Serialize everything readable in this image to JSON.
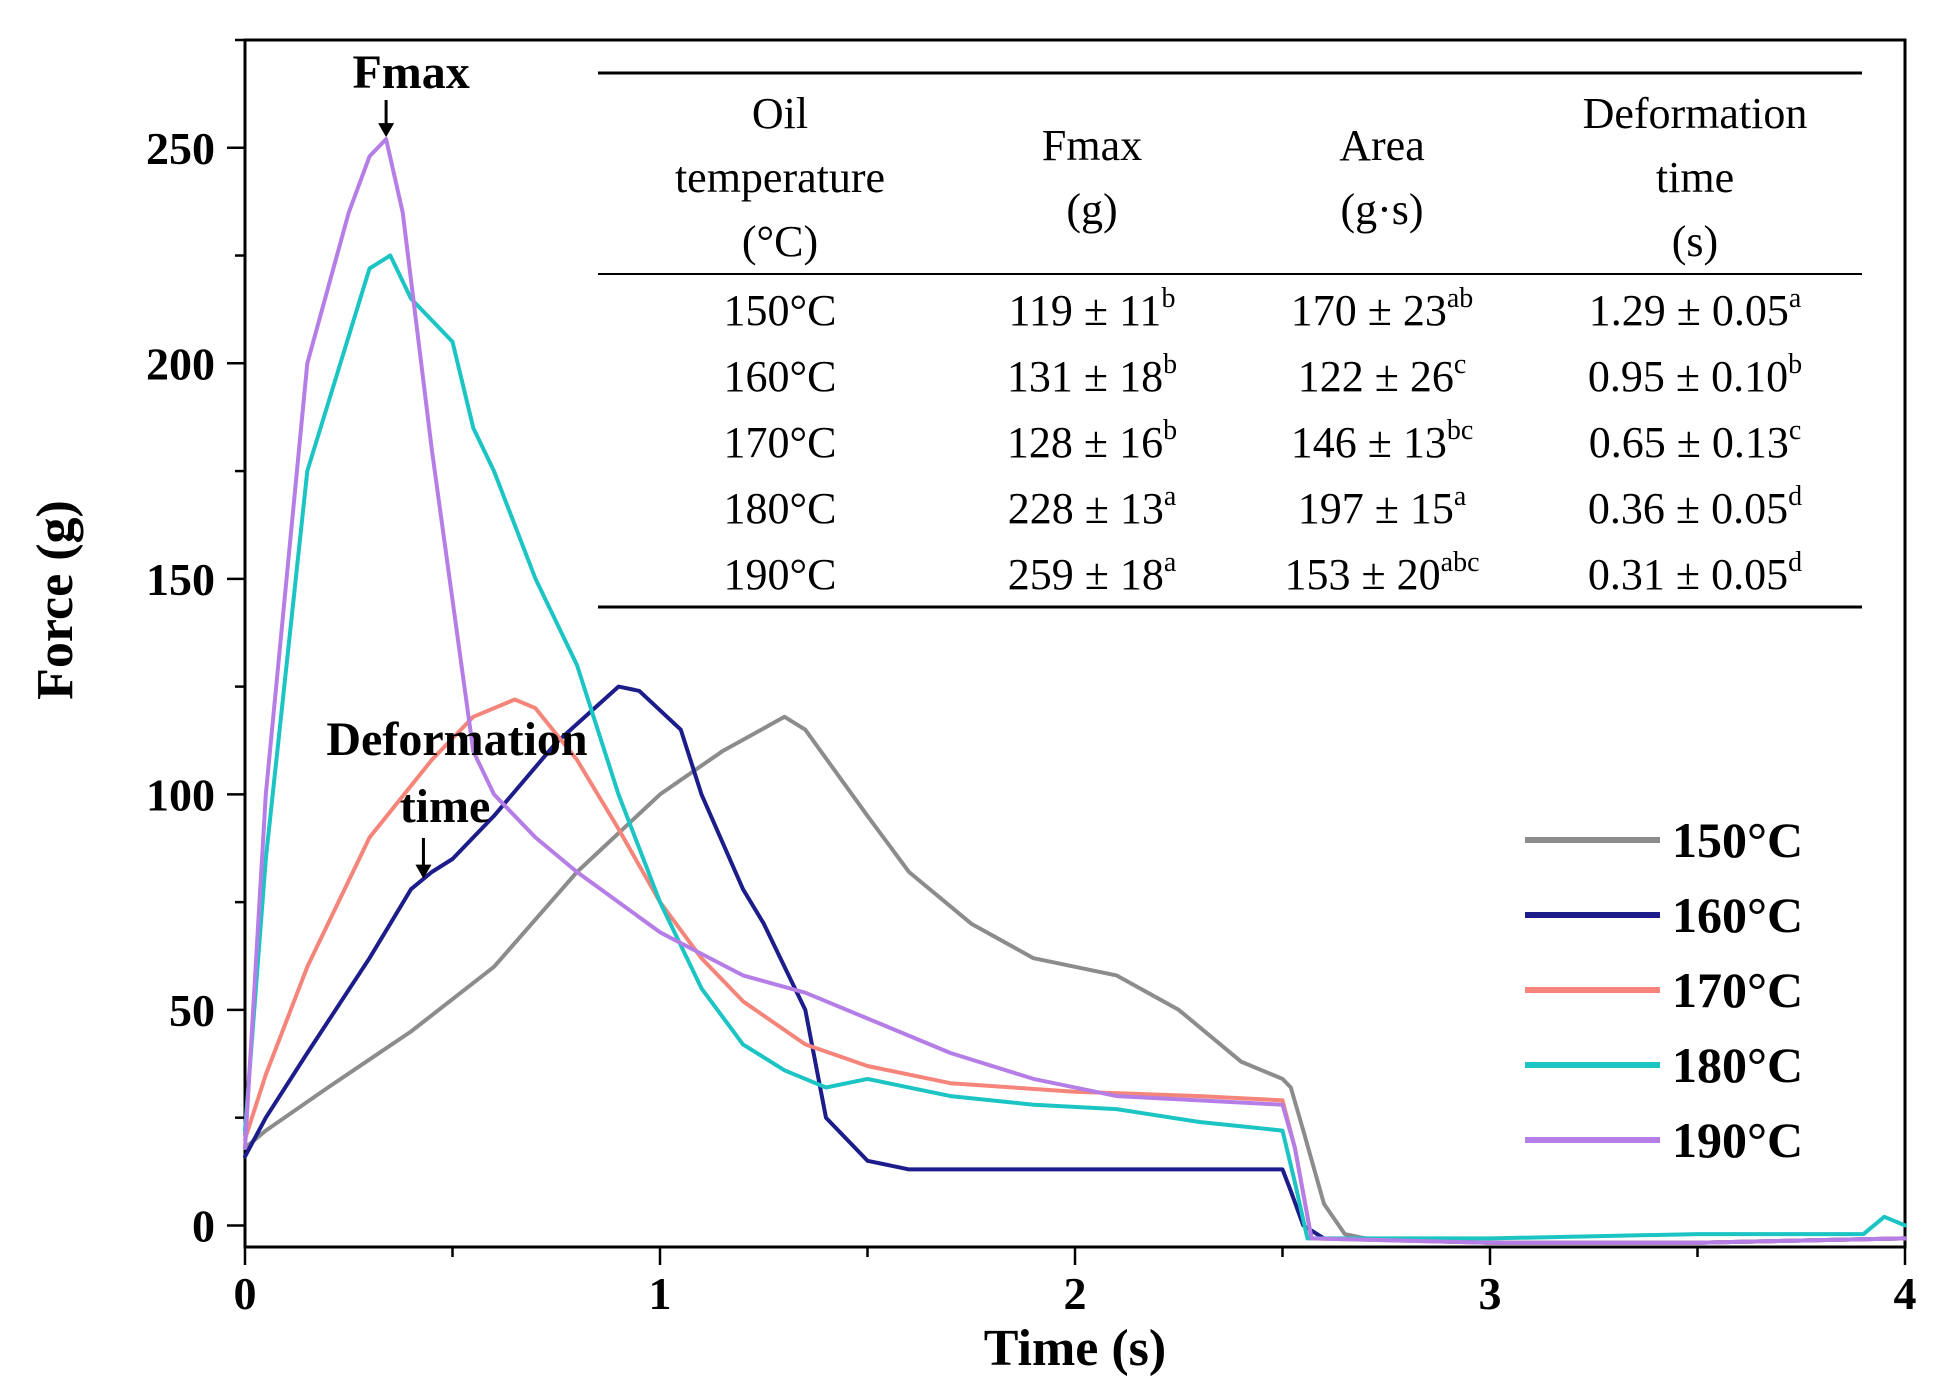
{
  "chart_data": {
    "type": "line",
    "xlabel": "Time (s)",
    "ylabel": "Force (g)",
    "xlim": [
      0,
      4
    ],
    "ylim": [
      -5,
      275
    ],
    "xticks": [
      0,
      1,
      2,
      3,
      4
    ],
    "yticks": [
      0,
      50,
      100,
      150,
      200,
      250
    ],
    "legend_position": "bottom-right",
    "annotations": [
      {
        "id": "fmax",
        "text": "Fmax",
        "x": 0.34,
        "y": 252
      },
      {
        "id": "deformation",
        "text_lines": [
          "Deformation",
          "time"
        ],
        "x": 0.43,
        "y": 80
      }
    ],
    "series": [
      {
        "name": "150°C",
        "color": "#8c8c8c",
        "x": [
          0,
          0.05,
          0.2,
          0.4,
          0.6,
          0.8,
          1.0,
          1.15,
          1.3,
          1.35,
          1.5,
          1.6,
          1.75,
          1.9,
          2.1,
          2.25,
          2.4,
          2.5,
          2.52,
          2.55,
          2.6,
          2.65,
          2.7,
          3.0,
          3.5,
          4.0
        ],
        "y": [
          18,
          22,
          32,
          45,
          60,
          82,
          100,
          110,
          118,
          115,
          95,
          82,
          70,
          62,
          58,
          50,
          38,
          34,
          32,
          22,
          5,
          -2,
          -3,
          -4,
          -4,
          -3
        ]
      },
      {
        "name": "160°C",
        "color": "#1c1c8a",
        "x": [
          0,
          0.05,
          0.15,
          0.3,
          0.4,
          0.45,
          0.5,
          0.6,
          0.75,
          0.9,
          0.95,
          1.05,
          1.1,
          1.2,
          1.25,
          1.3,
          1.35,
          1.4,
          1.5,
          1.6,
          2.0,
          2.5,
          2.52,
          2.55,
          2.6,
          3.0,
          3.5,
          4.0
        ],
        "y": [
          16,
          25,
          40,
          62,
          78,
          82,
          85,
          95,
          112,
          125,
          124,
          115,
          100,
          78,
          70,
          60,
          50,
          25,
          15,
          13,
          13,
          13,
          8,
          0,
          -3,
          -4,
          -4,
          -3
        ]
      },
      {
        "name": "170°C",
        "color": "#f5857a",
        "x": [
          0,
          0.05,
          0.15,
          0.3,
          0.45,
          0.55,
          0.65,
          0.7,
          0.8,
          0.9,
          1.0,
          1.1,
          1.2,
          1.35,
          1.5,
          1.7,
          2.0,
          2.3,
          2.5,
          2.53,
          2.57,
          3.0,
          3.5,
          4.0
        ],
        "y": [
          20,
          35,
          60,
          90,
          108,
          118,
          122,
          120,
          108,
          92,
          75,
          62,
          52,
          42,
          37,
          33,
          31,
          30,
          29,
          18,
          -3,
          -4,
          -4,
          -3
        ]
      },
      {
        "name": "180°C",
        "color": "#1cc4c4",
        "x": [
          0,
          0.05,
          0.15,
          0.3,
          0.35,
          0.4,
          0.45,
          0.5,
          0.55,
          0.6,
          0.7,
          0.8,
          0.9,
          1.0,
          1.1,
          1.2,
          1.3,
          1.4,
          1.5,
          1.7,
          1.9,
          2.1,
          2.3,
          2.5,
          2.53,
          2.56,
          3.0,
          3.5,
          3.9,
          3.95,
          4.0
        ],
        "y": [
          22,
          85,
          175,
          222,
          225,
          215,
          210,
          205,
          185,
          175,
          150,
          130,
          100,
          75,
          55,
          42,
          36,
          32,
          34,
          30,
          28,
          27,
          24,
          22,
          10,
          -3,
          -3,
          -2,
          -2,
          2,
          0
        ]
      },
      {
        "name": "190°C",
        "color": "#b57ee6",
        "x": [
          0,
          0.05,
          0.15,
          0.25,
          0.3,
          0.34,
          0.38,
          0.45,
          0.55,
          0.6,
          0.7,
          0.8,
          0.9,
          1.0,
          1.1,
          1.2,
          1.35,
          1.5,
          1.7,
          1.9,
          2.1,
          2.3,
          2.5,
          2.53,
          2.57,
          3.0,
          3.5,
          4.0
        ],
        "y": [
          18,
          100,
          200,
          235,
          248,
          252,
          235,
          180,
          110,
          100,
          90,
          82,
          75,
          68,
          63,
          58,
          54,
          48,
          40,
          34,
          30,
          29,
          28,
          18,
          -3,
          -4,
          -4,
          -3
        ]
      }
    ],
    "inset_table": {
      "headers": [
        [
          "Oil",
          "temperature",
          "(°C)"
        ],
        [
          "Fmax",
          "(g)"
        ],
        [
          "Area",
          "(g·s)"
        ],
        [
          "Deformation",
          "time",
          "(s)"
        ]
      ],
      "rows": [
        [
          {
            "v": "150°C",
            "s": ""
          },
          {
            "v": "119 ± 11",
            "s": "b"
          },
          {
            "v": "170 ± 23",
            "s": "ab"
          },
          {
            "v": "1.29 ± 0.05",
            "s": "a"
          }
        ],
        [
          {
            "v": "160°C",
            "s": ""
          },
          {
            "v": "131 ± 18",
            "s": "b"
          },
          {
            "v": "122 ± 26",
            "s": "c"
          },
          {
            "v": "0.95 ± 0.10",
            "s": "b"
          }
        ],
        [
          {
            "v": "170°C",
            "s": ""
          },
          {
            "v": "128 ± 16",
            "s": "b"
          },
          {
            "v": "146 ± 13",
            "s": "bc"
          },
          {
            "v": "0.65 ± 0.13",
            "s": "c"
          }
        ],
        [
          {
            "v": "180°C",
            "s": ""
          },
          {
            "v": "228 ± 13",
            "s": "a"
          },
          {
            "v": "197 ± 15",
            "s": "a"
          },
          {
            "v": "0.36 ± 0.05",
            "s": "d"
          }
        ],
        [
          {
            "v": "190°C",
            "s": ""
          },
          {
            "v": "259 ± 18",
            "s": "a"
          },
          {
            "v": "153 ± 20",
            "s": "abc"
          },
          {
            "v": "0.31 ± 0.05",
            "s": "d"
          }
        ]
      ]
    }
  }
}
